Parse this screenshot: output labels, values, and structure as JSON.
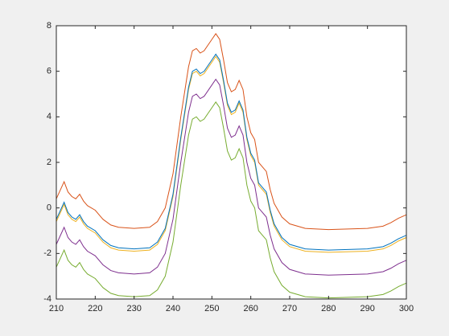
{
  "chart_data": {
    "type": "line",
    "x": [
      210,
      212,
      213,
      214,
      215,
      216,
      217,
      218,
      220,
      222,
      224,
      226,
      230,
      234,
      236,
      238,
      240,
      242,
      244,
      245,
      246,
      247,
      248,
      250,
      251,
      252,
      253,
      254,
      255,
      256,
      257,
      258,
      259,
      260,
      261,
      262,
      263,
      264,
      265,
      266,
      268,
      270,
      274,
      280,
      290,
      294,
      296,
      298,
      300
    ],
    "series": [
      {
        "color": "#d95319",
        "values": [
          0.4,
          1.15,
          0.7,
          0.5,
          0.4,
          0.6,
          0.3,
          0.1,
          -0.1,
          -0.5,
          -0.75,
          -0.85,
          -0.9,
          -0.85,
          -0.6,
          0,
          1.5,
          4,
          6.2,
          6.9,
          7,
          6.8,
          6.9,
          7.4,
          7.65,
          7.4,
          6.5,
          5.5,
          5.1,
          5.2,
          5.6,
          5.2,
          4,
          3.3,
          3,
          2,
          1.8,
          1.6,
          0.8,
          0.2,
          -0.4,
          -0.7,
          -0.9,
          -0.95,
          -0.9,
          -0.8,
          -0.65,
          -0.45,
          -0.3
        ]
      },
      {
        "color": "#edb120",
        "values": [
          -0.6,
          0.15,
          -0.3,
          -0.5,
          -0.6,
          -0.4,
          -0.7,
          -0.9,
          -1.1,
          -1.5,
          -1.75,
          -1.85,
          -1.9,
          -1.85,
          -1.6,
          -1,
          0.5,
          3,
          5.2,
          5.9,
          6,
          5.8,
          5.9,
          6.4,
          6.65,
          6.4,
          5.5,
          4.5,
          4.1,
          4.2,
          4.6,
          4.2,
          3,
          2.3,
          2,
          1,
          0.8,
          0.6,
          -0.2,
          -0.8,
          -1.4,
          -1.7,
          -1.9,
          -1.95,
          -1.9,
          -1.8,
          -1.65,
          -1.45,
          -1.3
        ]
      },
      {
        "color": "#0072bd",
        "values": [
          -0.5,
          0.25,
          -0.2,
          -0.4,
          -0.5,
          -0.3,
          -0.6,
          -0.8,
          -1,
          -1.4,
          -1.65,
          -1.75,
          -1.8,
          -1.75,
          -1.5,
          -0.9,
          0.6,
          3.1,
          5.3,
          6,
          6.1,
          5.9,
          6,
          6.5,
          6.75,
          6.5,
          5.6,
          4.6,
          4.2,
          4.3,
          4.7,
          4.3,
          3.1,
          2.4,
          2.1,
          1.1,
          0.9,
          0.7,
          -0.1,
          -0.7,
          -1.3,
          -1.6,
          -1.8,
          -1.85,
          -1.8,
          -1.7,
          -1.55,
          -1.35,
          -1.2
        ]
      },
      {
        "color": "#7e2f8e",
        "values": [
          -1.6,
          -0.85,
          -1.3,
          -1.5,
          -1.6,
          -1.4,
          -1.7,
          -1.9,
          -2.1,
          -2.5,
          -2.75,
          -2.85,
          -2.9,
          -2.85,
          -2.6,
          -2,
          -0.5,
          2,
          4.2,
          4.9,
          5,
          4.8,
          4.9,
          5.4,
          5.65,
          5.4,
          4.5,
          3.5,
          3.1,
          3.2,
          3.6,
          3.2,
          2,
          1.3,
          1,
          0,
          -0.2,
          -0.4,
          -1.2,
          -1.8,
          -2.4,
          -2.7,
          -2.9,
          -2.95,
          -2.9,
          -2.8,
          -2.65,
          -2.45,
          -2.3
        ]
      },
      {
        "color": "#77ac30",
        "values": [
          -2.6,
          -1.85,
          -2.3,
          -2.5,
          -2.6,
          -2.4,
          -2.7,
          -2.9,
          -3.1,
          -3.5,
          -3.75,
          -3.85,
          -3.9,
          -3.85,
          -3.6,
          -3,
          -1.5,
          1,
          3.2,
          3.9,
          4,
          3.8,
          3.9,
          4.4,
          4.65,
          4.4,
          3.5,
          2.5,
          2.1,
          2.2,
          2.6,
          2.2,
          1,
          0.3,
          0,
          -1,
          -1.2,
          -1.4,
          -2.2,
          -2.8,
          -3.4,
          -3.7,
          -3.9,
          -3.95,
          -3.9,
          -3.8,
          -3.65,
          -3.45,
          -3.3
        ]
      }
    ],
    "xlim": [
      210,
      300
    ],
    "xticks": [
      210,
      220,
      230,
      240,
      250,
      260,
      270,
      280,
      290,
      300
    ],
    "ylim": [
      -4,
      8
    ],
    "yticks": [
      -4,
      -2,
      0,
      2,
      4,
      6,
      8
    ]
  }
}
